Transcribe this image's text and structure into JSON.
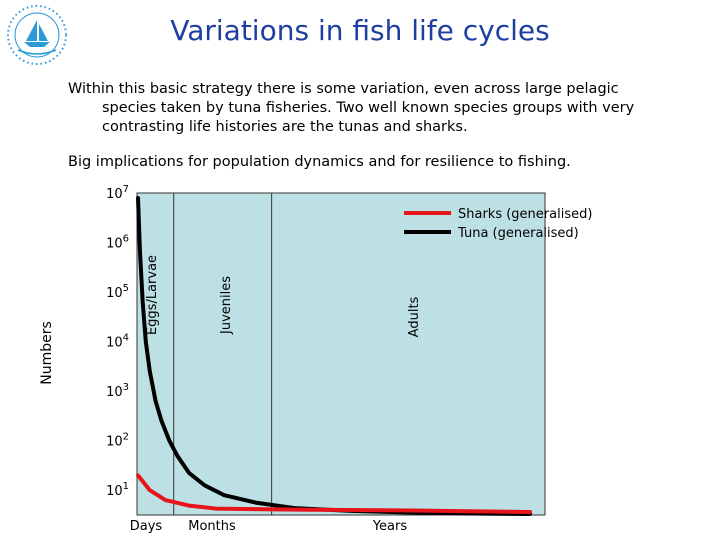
{
  "header": {
    "title": "Variations in fish life cycles"
  },
  "body": {
    "paragraph1_lines": [
      "Within this basic strategy there is some variation, even across large pelagic",
      "species taken by tuna fisheries. Two well known species groups with very",
      "contrasting life histories are the tunas and sharks."
    ],
    "paragraph2": "Big implications for population dynamics and for resilience to fishing."
  },
  "colors": {
    "title": "#1f3fa0",
    "plot_background": "#bde0e4",
    "shark_line": "#e8141c",
    "tuna_line": "#000000",
    "logo": "#2a9ad6"
  },
  "chart_data": {
    "type": "line",
    "title": "",
    "ylabel": "Numbers",
    "y_scale": "log10",
    "ylim_exponent": [
      0.5,
      7
    ],
    "y_ticks": [
      {
        "base": "10",
        "exp": "7",
        "value": 7
      },
      {
        "base": "10",
        "exp": "6",
        "value": 6
      },
      {
        "base": "10",
        "exp": "5",
        "value": 5
      },
      {
        "base": "10",
        "exp": "4",
        "value": 4
      },
      {
        "base": "10",
        "exp": "3",
        "value": 3
      },
      {
        "base": "10",
        "exp": "2",
        "value": 2
      },
      {
        "base": "10",
        "exp": "1",
        "value": 1
      }
    ],
    "x_ticks": [
      "Days",
      "Months",
      "Years"
    ],
    "stage_labels": [
      "Eggs/Larvae",
      "Juveniles",
      "Adults"
    ],
    "stage_boundaries": [
      0.09,
      0.33
    ],
    "legend": {
      "position": "top-right",
      "entries": [
        {
          "label": "Sharks (generalised)",
          "color": "#e8141c"
        },
        {
          "label": "Tuna (generalised)",
          "color": "#000000"
        }
      ]
    },
    "series": [
      {
        "name": "Tuna (generalised)",
        "color": "#000000",
        "points": [
          [
            0,
            6.9
          ],
          [
            0.005,
            5.8
          ],
          [
            0.012,
            4.8
          ],
          [
            0.02,
            4.0
          ],
          [
            0.03,
            3.4
          ],
          [
            0.045,
            2.8
          ],
          [
            0.06,
            2.4
          ],
          [
            0.08,
            2.0
          ],
          [
            0.1,
            1.7
          ],
          [
            0.13,
            1.35
          ],
          [
            0.17,
            1.1
          ],
          [
            0.22,
            0.9
          ],
          [
            0.3,
            0.75
          ],
          [
            0.4,
            0.64
          ],
          [
            0.55,
            0.58
          ],
          [
            0.7,
            0.55
          ],
          [
            0.85,
            0.53
          ],
          [
            1,
            0.52
          ]
        ]
      },
      {
        "name": "Sharks (generalised)",
        "color": "#e8141c",
        "points": [
          [
            0,
            1.3
          ],
          [
            0.03,
            1.0
          ],
          [
            0.07,
            0.8
          ],
          [
            0.13,
            0.69
          ],
          [
            0.2,
            0.63
          ],
          [
            0.4,
            0.61
          ],
          [
            0.7,
            0.59
          ],
          [
            1,
            0.56
          ]
        ]
      }
    ]
  }
}
